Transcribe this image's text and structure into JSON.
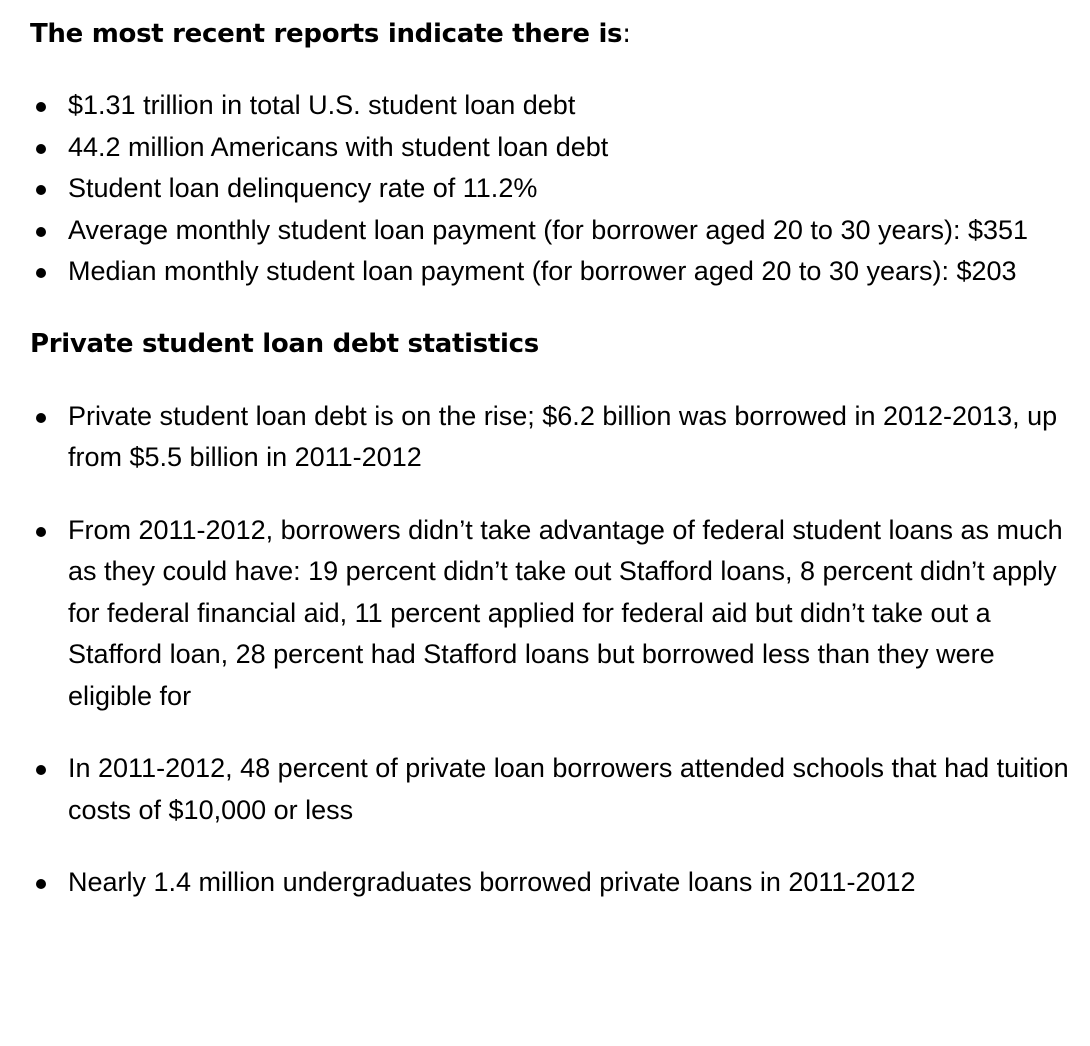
{
  "intro": {
    "heading": "The most recent reports indicate there is",
    "colon": ":",
    "items": [
      "$1.31 trillion in total U.S. student loan debt",
      "44.2 million Americans with student loan debt",
      "Student loan delinquency rate of 11.2%",
      "Average monthly student loan payment (for borrower aged 20 to 30 years): $351",
      "Median monthly student loan payment (for borrower aged 20 to 30 years): $203"
    ]
  },
  "private": {
    "heading": "Private student loan debt statistics",
    "items": [
      "Private student loan debt is on the rise; $6.2 billion was borrowed in 2012-2013, up from $5.5 billion in 2011-2012",
      "From 2011-2012, borrowers didn’t take advantage of federal student loans as much as they could have: 19 percent didn’t take out Stafford loans, 8 percent didn’t apply for federal financial aid, 11 percent applied for federal aid but didn’t take out a Stafford loan, 28 percent had Stafford loans but borrowed less than they were eligible for",
      "In 2011-2012, 48 percent of private loan borrowers attended schools that had tuition costs of $10,000 or less",
      "Nearly 1.4 million undergraduates borrowed private loans in 2011-2012"
    ]
  }
}
